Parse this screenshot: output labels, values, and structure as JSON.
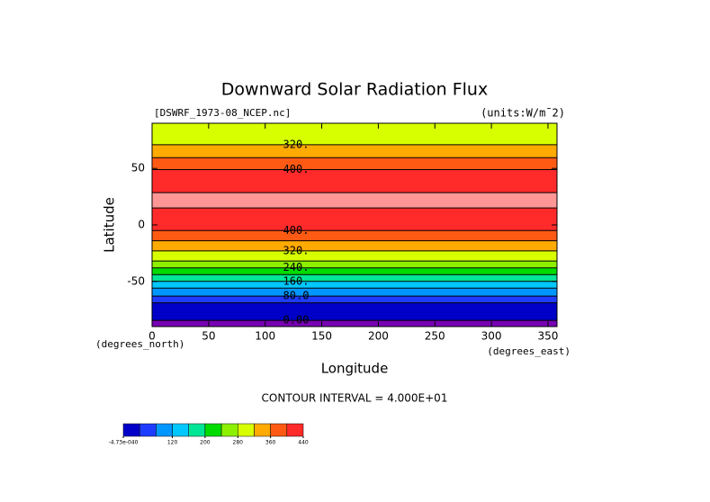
{
  "chart_data": {
    "type": "contour_bands",
    "title": "Downward Solar Radiation Flux",
    "file_label": "[DSWRF_1973-08_NCEP.nc]",
    "units_label": "(units:W/m¯2)",
    "x_label": "Longitude",
    "y_label": "Latitude",
    "x_units": "(degrees_east)",
    "y_units": "(degrees_north)",
    "footer": "CONTOUR INTERVAL = 4.000E+01",
    "xlim": [
      0,
      358
    ],
    "ylim": [
      -90,
      90
    ],
    "xticks": [
      0,
      50,
      100,
      150,
      200,
      250,
      300,
      350
    ],
    "yticks": [
      -50,
      0,
      50
    ],
    "band_edges": [
      90,
      71,
      59.5,
      49,
      28.6,
      15,
      -5,
      -14,
      -23,
      -32,
      -38,
      -44,
      -50,
      -56,
      -63,
      -69,
      -84.5,
      -90
    ],
    "band_colors": [
      "#d8ff00",
      "#ffaa00",
      "#ff5a14",
      "#ff2a2a",
      "#ff9696",
      "#ff2a2a",
      "#ff5a14",
      "#ffaa00",
      "#d8ff00",
      "#8cf000",
      "#00dc00",
      "#00e696",
      "#00c8ff",
      "#0096ff",
      "#1e3cff",
      "#0000c8",
      "#7800b4"
    ],
    "contours": [
      {
        "level": 320,
        "label": "320.",
        "lat": 71
      },
      {
        "level": 400,
        "label": "400.",
        "lat": 49
      },
      {
        "level": 400,
        "label": "400.",
        "lat": -5
      },
      {
        "level": 320,
        "label": "320.",
        "lat": -23
      },
      {
        "level": 240,
        "label": "240.",
        "lat": -38
      },
      {
        "level": 160,
        "label": "160.",
        "lat": -50
      },
      {
        "level": 80,
        "label": "80.0",
        "lat": -63
      },
      {
        "level": 0,
        "label": "0.00",
        "lat": -84.5
      }
    ],
    "colorbar": {
      "lim": [
        0,
        440
      ],
      "colors": [
        "#0000c8",
        "#1e3cff",
        "#0096ff",
        "#00c8ff",
        "#00e696",
        "#00dc00",
        "#8cf000",
        "#d8ff00",
        "#ffaa00",
        "#ff5a14",
        "#ff2a2a"
      ],
      "ticks": [
        {
          "value": -4.73e-40,
          "label": "-4.73e-040"
        },
        120,
        200,
        280,
        360,
        440
      ]
    }
  }
}
